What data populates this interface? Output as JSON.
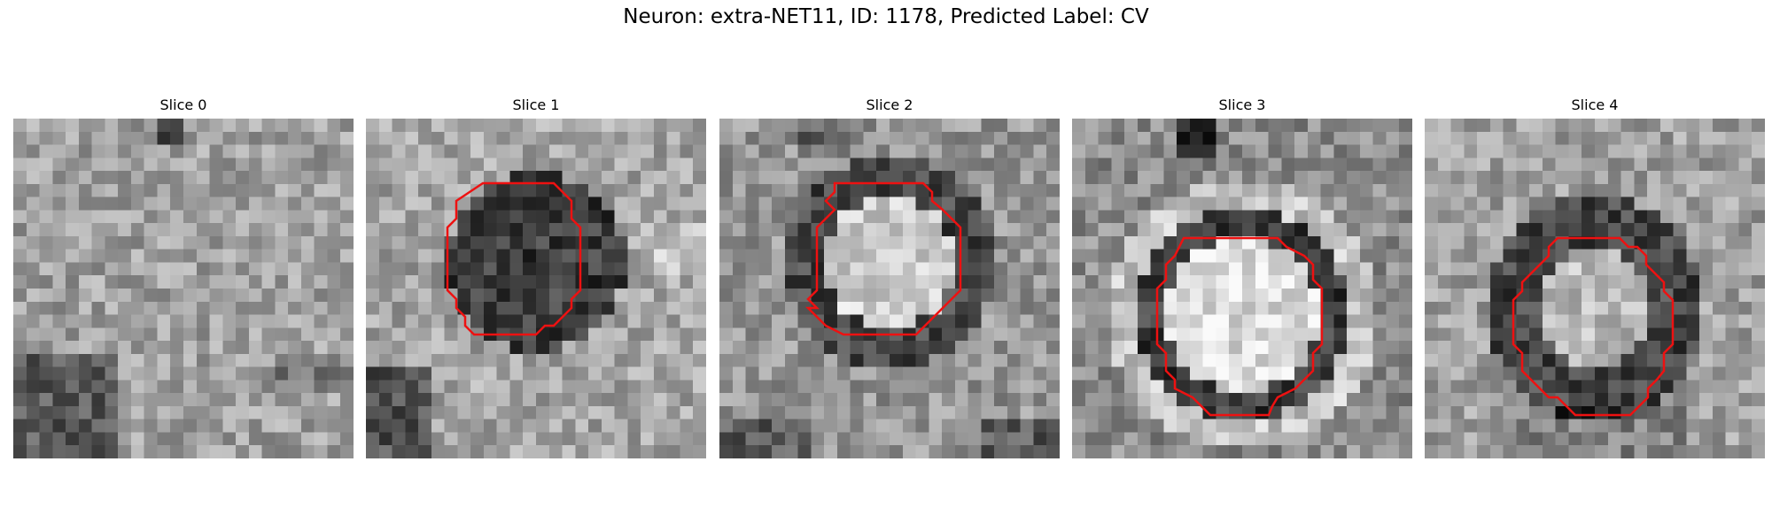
{
  "figure": {
    "title": "Neuron: extra-NET11, ID: 1178, Predicted Label: CV"
  },
  "panels": [
    {
      "title": "Slice 0",
      "contour": false,
      "mask_shape": "none"
    },
    {
      "title": "Slice 1",
      "contour": true,
      "mask_shape": "octagon",
      "center_appearance": "dark"
    },
    {
      "title": "Slice 2",
      "contour": true,
      "mask_shape": "octagon",
      "center_appearance": "bright with dark ring"
    },
    {
      "title": "Slice 3",
      "contour": true,
      "mask_shape": "octagon",
      "center_appearance": "bright with dark ring"
    },
    {
      "title": "Slice 4",
      "contour": true,
      "mask_shape": "octagon",
      "center_appearance": "textured with dark ring"
    }
  ],
  "colors": {
    "contour": "#ee1111",
    "background": "#ffffff",
    "colormap": "grayscale"
  }
}
